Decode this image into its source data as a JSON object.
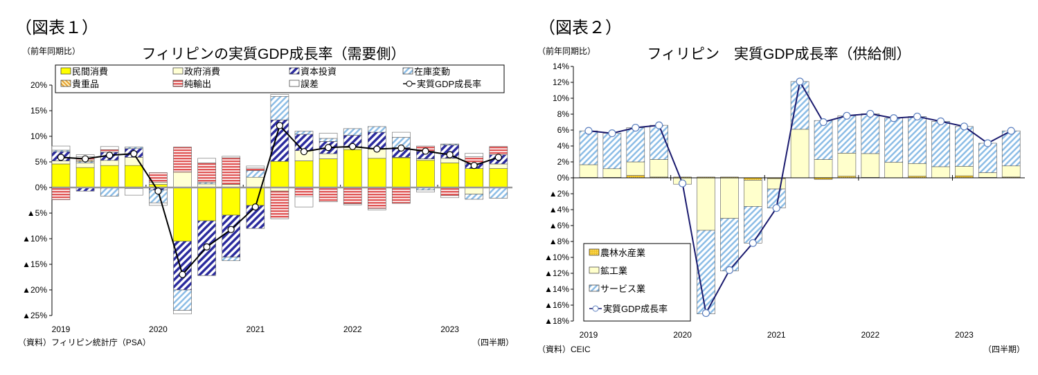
{
  "figures": [
    {
      "label": "（図表１）",
      "unit_note": "（前年同期比）",
      "source": "（資料）フィリピン統計庁（PSA）",
      "period_note": "（四半期）"
    },
    {
      "label": "（図表２）",
      "unit_note": "（前年同期比）",
      "source": "（資料）CEIC",
      "period_note": "（四半期）"
    }
  ],
  "chart_data": [
    {
      "type": "bar",
      "stacked": true,
      "title": "フィリピンの実質GDP成長率（需要側）",
      "ylim": [
        -25,
        20
      ],
      "yticks": [
        20,
        15,
        10,
        5,
        0,
        -5,
        -10,
        -15,
        -20,
        -25
      ],
      "ytick_labels": [
        "20%",
        "15%",
        "10%",
        "5%",
        "0%",
        "▲5%",
        "▲10%",
        "▲15%",
        "▲20%",
        "▲25%"
      ],
      "x_year_labels": [
        "2019",
        "2020",
        "2021",
        "2022",
        "2023"
      ],
      "categories": [
        "2019Q1",
        "2019Q2",
        "2019Q3",
        "2019Q4",
        "2020Q1",
        "2020Q2",
        "2020Q3",
        "2020Q4",
        "2021Q1",
        "2021Q2",
        "2021Q3",
        "2021Q4",
        "2022Q1",
        "2022Q2",
        "2022Q3",
        "2022Q4",
        "2023Q1",
        "2023Q2",
        "2023Q3"
      ],
      "legend_placement": "top",
      "series": [
        {
          "name": "民間消費",
          "color": "#ffff00",
          "pattern": "solid",
          "values": [
            4.6,
            3.9,
            4.3,
            4.3,
            0.6,
            -10.5,
            -6.5,
            -5.4,
            -3.5,
            5.1,
            5.2,
            5.6,
            7.4,
            5.7,
            5.8,
            5.3,
            4.8,
            3.7,
            3.7
          ]
        },
        {
          "name": "政府消費",
          "color": "#ffffd4",
          "pattern": "solid",
          "values": [
            0.6,
            0.9,
            1.0,
            1.6,
            0.4,
            3.0,
            0.7,
            0.6,
            2.0,
            -0.7,
            2.0,
            1.0,
            0.4,
            1.8,
            0.1,
            0.3,
            0.9,
            -1.3,
            0.9
          ]
        },
        {
          "name": "資本投資",
          "color": "#2b2b9e",
          "pattern": "diagonal-bold",
          "values": [
            1.8,
            -0.7,
            1.6,
            1.7,
            -0.5,
            -9.5,
            -10.7,
            -8.2,
            -4.5,
            8.1,
            3.2,
            2.4,
            2.4,
            3.3,
            1.9,
            1.5,
            2.6,
            1.0,
            1.8
          ]
        },
        {
          "name": "在庫変動",
          "color": "#8cc0e6",
          "pattern": "diagonal-light",
          "values": [
            0.3,
            0.3,
            -1.7,
            0.3,
            -2.5,
            -4.0,
            0.3,
            -0.7,
            1.3,
            4.6,
            0.6,
            0.6,
            1.3,
            1.1,
            2.0,
            -0.5,
            0.2,
            -1.0,
            -2.1
          ]
        },
        {
          "name": "貴重品",
          "color": "#e8a030",
          "pattern": "diagonal-orange",
          "values": [
            0.0,
            0.2,
            0.0,
            -0.2,
            0.0,
            0.0,
            0.0,
            0.0,
            0.0,
            0.0,
            0.0,
            0.0,
            0.0,
            0.0,
            0.0,
            0.0,
            0.0,
            0.0,
            0.0
          ]
        },
        {
          "name": "純輸出",
          "color": "#e05555",
          "pattern": "horizontal",
          "values": [
            -2.4,
            0.7,
            0.5,
            0.0,
            1.9,
            4.9,
            3.8,
            5.2,
            0.5,
            -5.4,
            -1.8,
            -2.8,
            -3.2,
            -4.1,
            -3.1,
            1.0,
            -1.6,
            1.3,
            1.6
          ]
        },
        {
          "name": "誤差",
          "color": "#ffffff",
          "pattern": "solid",
          "values": [
            0.8,
            0.4,
            0.6,
            -1.3,
            -0.5,
            -0.7,
            0.9,
            0.3,
            0.4,
            0.4,
            -2.0,
            1.0,
            -0.2,
            -0.3,
            1.0,
            -0.4,
            -0.4,
            0.7,
            0.0
          ]
        }
      ],
      "line": {
        "name": "実質GDP成長率",
        "color": "#000000",
        "values": [
          5.9,
          5.6,
          6.3,
          6.6,
          -0.7,
          -17.0,
          -11.6,
          -8.2,
          -3.8,
          12.1,
          7.0,
          7.8,
          8.0,
          7.5,
          7.7,
          7.1,
          6.4,
          4.3,
          5.9
        ]
      }
    },
    {
      "type": "bar",
      "stacked": true,
      "title": "フィリピン　実質GDP成長率（供給側）",
      "ylim": [
        -18,
        14
      ],
      "yticks": [
        14,
        12,
        10,
        8,
        6,
        4,
        2,
        0,
        -2,
        -4,
        -6,
        -8,
        -10,
        -12,
        -14,
        -16,
        -18
      ],
      "ytick_labels": [
        "14%",
        "12%",
        "10%",
        "8%",
        "6%",
        "4%",
        "2%",
        "0%",
        "▲2%",
        "▲4%",
        "▲6%",
        "▲8%",
        "▲10%",
        "▲12%",
        "▲14%",
        "▲16%",
        "▲18%"
      ],
      "x_year_labels": [
        "2019",
        "2020",
        "2021",
        "2022",
        "2023"
      ],
      "categories": [
        "2019Q1",
        "2019Q2",
        "2019Q3",
        "2019Q4",
        "2020Q1",
        "2020Q2",
        "2020Q3",
        "2020Q4",
        "2021Q1",
        "2021Q2",
        "2021Q3",
        "2021Q4",
        "2022Q1",
        "2022Q2",
        "2022Q3",
        "2022Q4",
        "2023Q1",
        "2023Q2",
        "2023Q3"
      ],
      "legend_placement": "bottom-left",
      "series": [
        {
          "name": "農林水産業",
          "color": "#f0c020",
          "pattern": "dotted",
          "values": [
            0.05,
            0.05,
            0.3,
            0.1,
            0.1,
            0.1,
            0.1,
            -0.3,
            -0.1,
            0.0,
            -0.2,
            0.2,
            0.05,
            0.0,
            0.2,
            0.0,
            0.25,
            0.05,
            0.1
          ]
        },
        {
          "name": "鉱工業",
          "color": "#ffffcc",
          "pattern": "solid",
          "values": [
            1.6,
            1.1,
            1.7,
            2.2,
            -0.8,
            -6.6,
            -5.1,
            -3.3,
            -1.3,
            6.1,
            2.3,
            2.9,
            3.0,
            1.95,
            1.6,
            1.4,
            1.2,
            0.6,
            1.4
          ]
        },
        {
          "name": "サービス業",
          "color": "#8cbde6",
          "pattern": "diagonal-light",
          "values": [
            4.25,
            4.45,
            4.3,
            4.3,
            0.0,
            -10.5,
            -6.6,
            -4.6,
            -2.4,
            6.0,
            4.9,
            4.7,
            5.0,
            5.55,
            5.9,
            5.7,
            5.0,
            3.7,
            4.4
          ]
        }
      ],
      "line": {
        "name": "実質GDP成長率",
        "color": "#1a1a6e",
        "marker_edge": "#5b7fbf",
        "values": [
          5.9,
          5.6,
          6.3,
          6.6,
          -0.7,
          -17.0,
          -11.6,
          -8.2,
          -3.8,
          12.1,
          7.0,
          7.8,
          8.05,
          7.5,
          7.7,
          7.1,
          6.45,
          4.35,
          5.9
        ]
      }
    }
  ]
}
